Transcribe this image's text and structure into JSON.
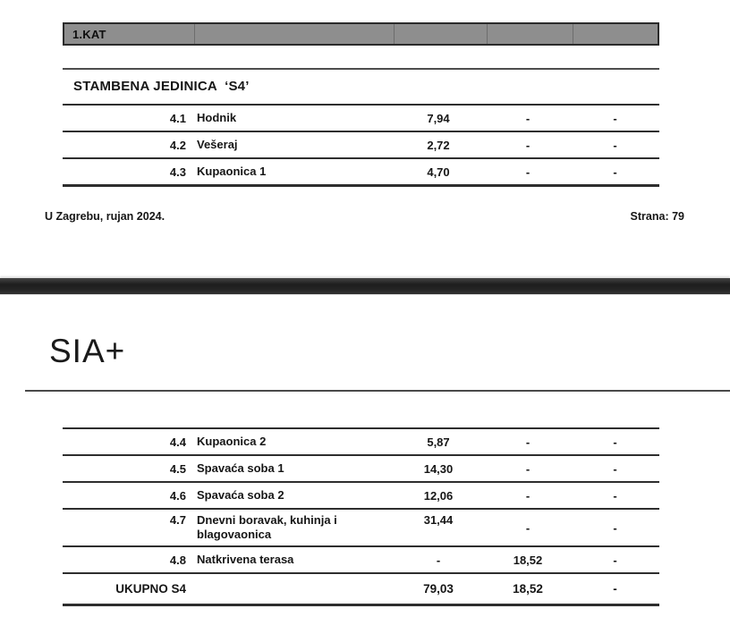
{
  "page1": {
    "floor_header": "1.KAT",
    "section_title": "STAMBENA JEDINICA  ‘S4’",
    "table": {
      "rows": [
        {
          "num": "4.1",
          "name": "Hodnik",
          "area": "7,94",
          "c2": "-",
          "c3": "-"
        },
        {
          "num": "4.2",
          "name": "Vešeraj",
          "area": "2,72",
          "c2": "-",
          "c3": "-"
        },
        {
          "num": "4.3",
          "name": "Kupaonica 1",
          "area": "4,70",
          "c2": "-",
          "c3": "-"
        }
      ]
    },
    "footer_left": "U Zagrebu, rujan 2024.",
    "footer_right": "Strana: 79"
  },
  "page2": {
    "logo": "SIA+",
    "table": {
      "rows": [
        {
          "num": "4.4",
          "name": "Kupaonica 2",
          "area": "5,87",
          "c2": "-",
          "c3": "-"
        },
        {
          "num": "4.5",
          "name": "Spavaća soba 1",
          "area": "14,30",
          "c2": "-",
          "c3": "-"
        },
        {
          "num": "4.6",
          "name": "Spavaća soba 2",
          "area": "12,06",
          "c2": "-",
          "c3": "-"
        },
        {
          "num": "4.7",
          "name": "Dnevni boravak, kuhinja i blagovaonica",
          "area": "31,44",
          "c2": "-",
          "c3": "-"
        },
        {
          "num": "4.8",
          "name": "Natkrivena terasa",
          "area": "-",
          "c2": "18,52",
          "c3": "-"
        }
      ],
      "total": {
        "label": "UKUPNO S4",
        "area": "79,03",
        "c2": "18,52",
        "c3": "-"
      }
    }
  },
  "colors": {
    "floor_header_bg": "#8e8e8e",
    "table_line": "#2e2e2e",
    "separator_bar": "#262626",
    "text": "#161616"
  }
}
